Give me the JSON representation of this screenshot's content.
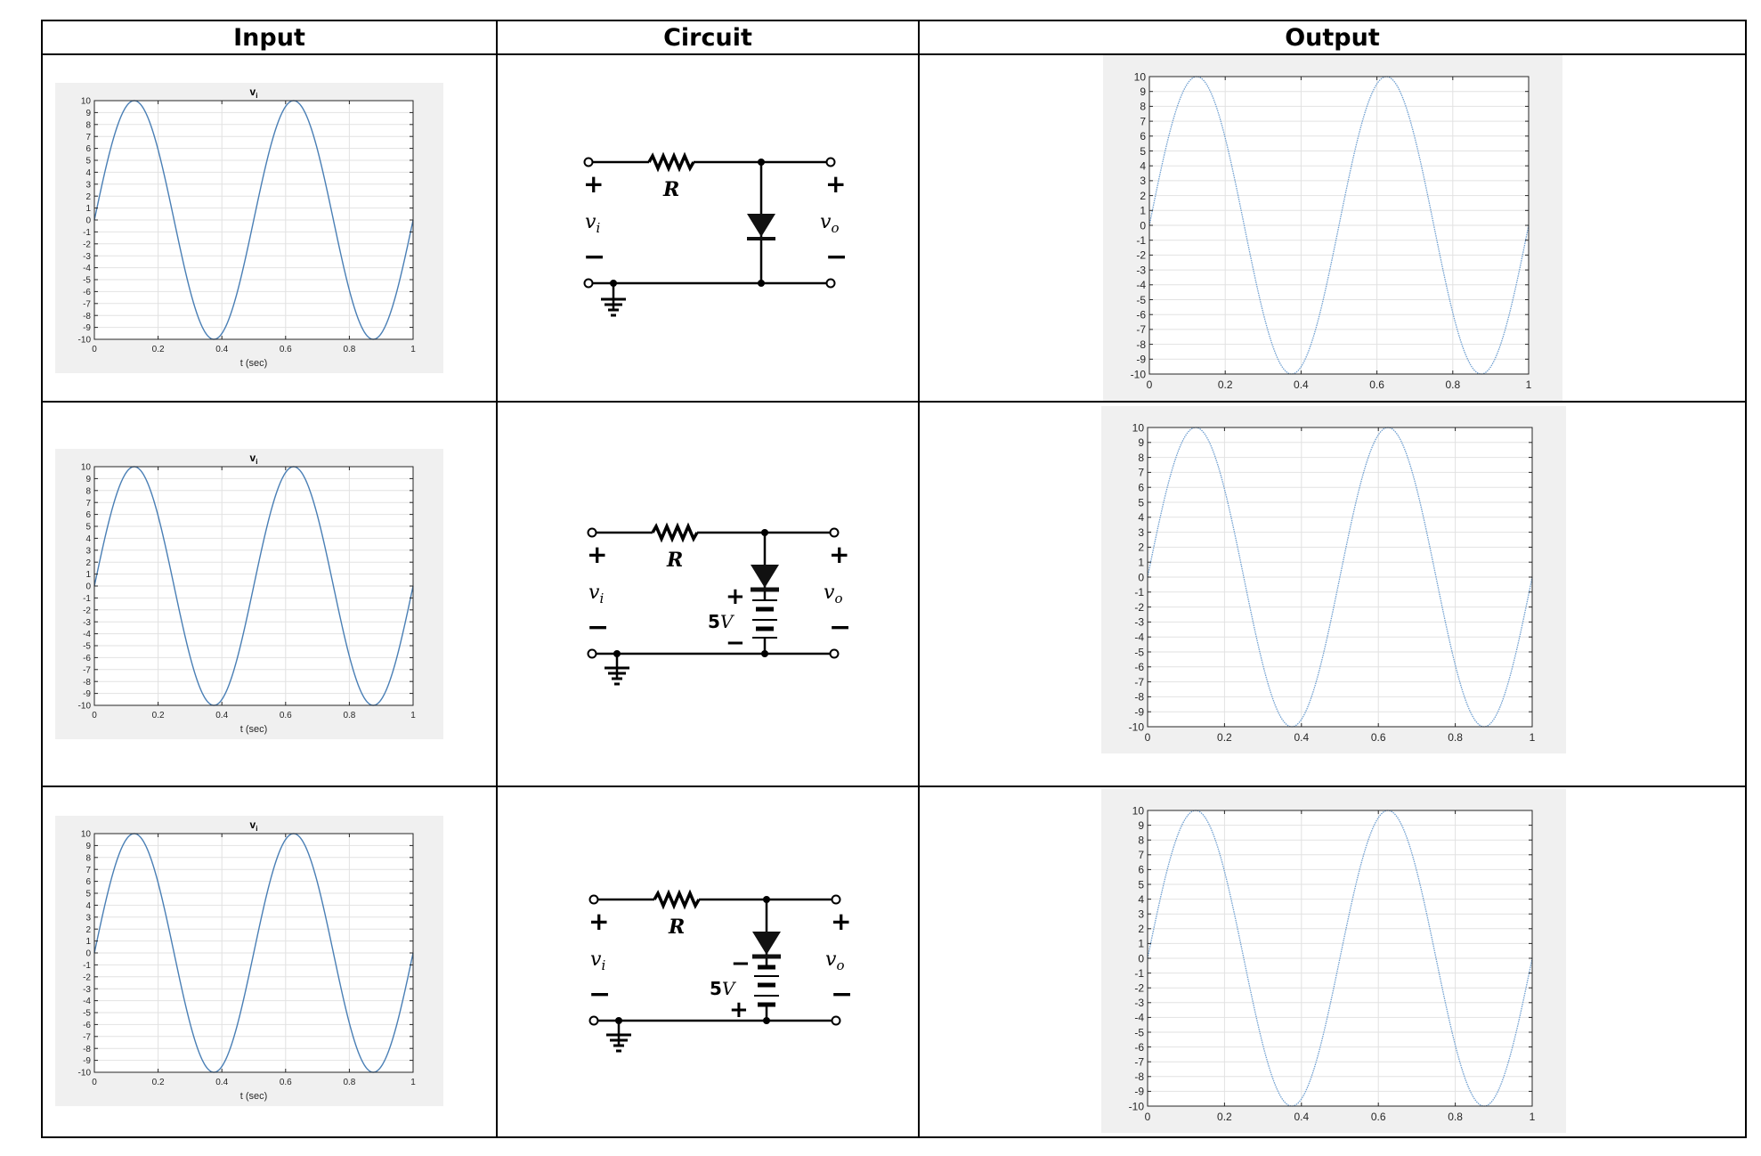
{
  "table": {
    "headers": [
      "Input",
      "Circuit",
      "Output"
    ],
    "rows": [
      {
        "circuit": {
          "resistor": "R",
          "vin": "v",
          "vin_sub": "i",
          "vout": "v",
          "vout_sub": "o",
          "plus": "+",
          "minus": "−"
        }
      },
      {
        "circuit": {
          "resistor": "R",
          "vin": "v",
          "vin_sub": "i",
          "vout": "v",
          "vout_sub": "o",
          "plus": "+",
          "minus": "−",
          "source": "5",
          "source_unit": "V",
          "source_top": "+",
          "source_bottom": "−"
        }
      },
      {
        "circuit": {
          "resistor": "R",
          "vin": "v",
          "vin_sub": "i",
          "vout": "v",
          "vout_sub": "o",
          "plus": "+",
          "minus": "−",
          "source": "5",
          "source_unit": "V",
          "source_top": "−",
          "source_bottom": "+"
        }
      }
    ]
  },
  "chart_data": [
    {
      "type": "line",
      "role": "input",
      "row": 1,
      "title": "v",
      "title_sub": "i",
      "xlabel": "t (sec)",
      "xlim": [
        0,
        1
      ],
      "ylim": [
        -10,
        10
      ],
      "grid": true,
      "x_ticks": [
        "0",
        "0.2",
        "0.4",
        "0.6",
        "0.8",
        "1"
      ],
      "y_ticks": [
        "-10",
        "-9",
        "-8",
        "-7",
        "-6",
        "-5",
        "-4",
        "-3",
        "-2",
        "-1",
        "0",
        "1",
        "2",
        "3",
        "4",
        "5",
        "6",
        "7",
        "8",
        "9",
        "10"
      ],
      "series": [
        {
          "function": "10*sin(2*pi*2*t)",
          "amplitude": 10,
          "frequency_hz": 2,
          "color": "#4a7fb5"
        }
      ]
    },
    {
      "type": "line",
      "role": "input",
      "row": 2,
      "title": "v",
      "title_sub": "i",
      "xlabel": "t (sec)",
      "xlim": [
        0,
        1
      ],
      "ylim": [
        -10,
        10
      ],
      "grid": true,
      "x_ticks": [
        "0",
        "0.2",
        "0.4",
        "0.6",
        "0.8",
        "1"
      ],
      "y_ticks": [
        "-10",
        "-9",
        "-8",
        "-7",
        "-6",
        "-5",
        "-4",
        "-3",
        "-2",
        "-1",
        "0",
        "1",
        "2",
        "3",
        "4",
        "5",
        "6",
        "7",
        "8",
        "9",
        "10"
      ],
      "series": [
        {
          "function": "10*sin(2*pi*2*t)",
          "amplitude": 10,
          "frequency_hz": 2,
          "color": "#4a7fb5"
        }
      ]
    },
    {
      "type": "line",
      "role": "input",
      "row": 3,
      "title": "v",
      "title_sub": "i",
      "xlabel": "t (sec)",
      "xlim": [
        0,
        1
      ],
      "ylim": [
        -10,
        10
      ],
      "grid": true,
      "x_ticks": [
        "0",
        "0.2",
        "0.4",
        "0.6",
        "0.8",
        "1"
      ],
      "y_ticks": [
        "-10",
        "-9",
        "-8",
        "-7",
        "-6",
        "-5",
        "-4",
        "-3",
        "-2",
        "-1",
        "0",
        "1",
        "2",
        "3",
        "4",
        "5",
        "6",
        "7",
        "8",
        "9",
        "10"
      ],
      "series": [
        {
          "function": "10*sin(2*pi*2*t)",
          "amplitude": 10,
          "frequency_hz": 2,
          "color": "#4a7fb5"
        }
      ]
    },
    {
      "type": "line",
      "role": "output",
      "row": 1,
      "title": "",
      "xlabel": "",
      "xlim": [
        0,
        1
      ],
      "ylim": [
        -10,
        10
      ],
      "grid": true,
      "x_ticks": [
        "0",
        "0.2",
        "0.4",
        "0.6",
        "0.8",
        "1"
      ],
      "y_ticks": [
        "-10",
        "-9",
        "-8",
        "-7",
        "-6",
        "-5",
        "-4",
        "-3",
        "-2",
        "-1",
        "0",
        "1",
        "2",
        "3",
        "4",
        "5",
        "6",
        "7",
        "8",
        "9",
        "10"
      ],
      "series": [
        {
          "function": "10*sin(2*pi*2*t)",
          "amplitude": 10,
          "frequency_hz": 2,
          "color": "#6f9fd0",
          "dotted": true
        }
      ]
    },
    {
      "type": "line",
      "role": "output",
      "row": 2,
      "title": "",
      "xlabel": "",
      "xlim": [
        0,
        1
      ],
      "ylim": [
        -10,
        10
      ],
      "grid": true,
      "x_ticks": [
        "0",
        "0.2",
        "0.4",
        "0.6",
        "0.8",
        "1"
      ],
      "y_ticks": [
        "-10",
        "-9",
        "-8",
        "-7",
        "-6",
        "-5",
        "-4",
        "-3",
        "-2",
        "-1",
        "0",
        "1",
        "2",
        "3",
        "4",
        "5",
        "6",
        "7",
        "8",
        "9",
        "10"
      ],
      "series": [
        {
          "function": "10*sin(2*pi*2*t)",
          "amplitude": 10,
          "frequency_hz": 2,
          "color": "#6f9fd0",
          "dotted": true
        }
      ]
    },
    {
      "type": "line",
      "role": "output",
      "row": 3,
      "title": "",
      "xlabel": "",
      "xlim": [
        0,
        1
      ],
      "ylim": [
        -10,
        10
      ],
      "grid": true,
      "x_ticks": [
        "0",
        "0.2",
        "0.4",
        "0.6",
        "0.8",
        "1"
      ],
      "y_ticks": [
        "-10",
        "-9",
        "-8",
        "-7",
        "-6",
        "-5",
        "-4",
        "-3",
        "-2",
        "-1",
        "0",
        "1",
        "2",
        "3",
        "4",
        "5",
        "6",
        "7",
        "8",
        "9",
        "10"
      ],
      "series": [
        {
          "function": "10*sin(2*pi*2*t)",
          "amplitude": 10,
          "frequency_hz": 2,
          "color": "#6f9fd0",
          "dotted": true
        }
      ]
    }
  ]
}
